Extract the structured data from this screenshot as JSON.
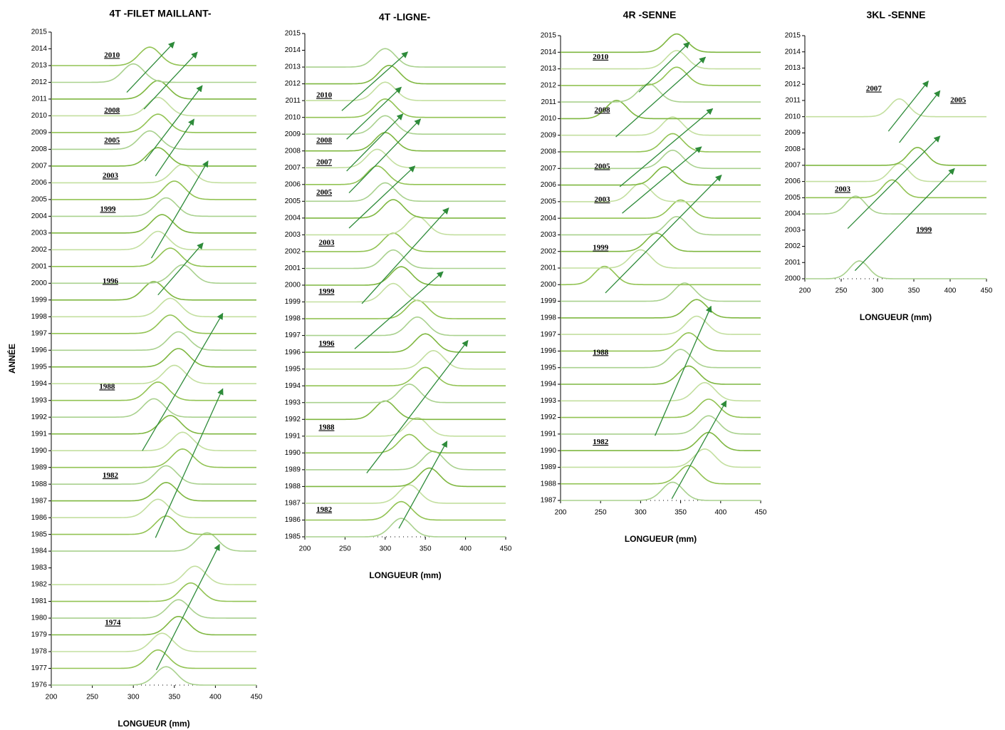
{
  "chart_data": [
    {
      "type": "ridgeline",
      "title": "4T -FILET MAILLANT-",
      "xlabel": "LONGUEUR  (mm)",
      "ylabel": "ANNÉE",
      "xlim": [
        200,
        450
      ],
      "xticks": [
        200,
        250,
        300,
        350,
        400,
        450
      ],
      "ylim": [
        1976,
        2015
      ],
      "yticks": [
        1976,
        1977,
        1978,
        1979,
        1980,
        1981,
        1982,
        1983,
        1984,
        1985,
        1986,
        1987,
        1988,
        1989,
        1990,
        1991,
        1992,
        1993,
        1994,
        1995,
        1996,
        1997,
        1998,
        1999,
        2000,
        2001,
        2002,
        2003,
        2004,
        2005,
        2006,
        2007,
        2008,
        2009,
        2010,
        2011,
        2012,
        2013,
        2014,
        2015
      ],
      "modes": [
        340,
        330,
        335,
        355,
        355,
        370,
        375,
        null,
        390,
        340,
        330,
        340,
        340,
        360,
        360,
        345,
        325,
        330,
        350,
        355,
        355,
        345,
        345,
        325,
        360,
        345,
        330,
        335,
        340,
        350,
        360,
        330,
        320,
        330,
        330,
        330,
        300,
        320,
        null,
        null
      ],
      "colors": [
        "#a9d18e",
        "#92c353",
        "#c3df9f",
        "#7fb740"
      ],
      "arrow_color": "#2e8b3a",
      "annotations": [
        {
          "text": "2010",
          "x": 274,
          "y": 2013.6
        },
        {
          "text": "2008",
          "x": 274,
          "y": 2010.3
        },
        {
          "text": "2005",
          "x": 274,
          "y": 2008.5
        },
        {
          "text": "2003",
          "x": 272,
          "y": 2006.4
        },
        {
          "text": "1999",
          "x": 269,
          "y": 2004.4
        },
        {
          "text": "1996",
          "x": 272,
          "y": 2000.1
        },
        {
          "text": "1988",
          "x": 268,
          "y": 1993.8
        },
        {
          "text": "1982",
          "x": 272,
          "y": 1988.5
        },
        {
          "text": "1974",
          "x": 275,
          "y": 1979.7
        }
      ],
      "arrows": [
        {
          "x1": 292,
          "y1": 2011.4,
          "x2": 350,
          "y2": 2014.4
        },
        {
          "x1": 313,
          "y1": 2010.4,
          "x2": 378,
          "y2": 2013.8
        },
        {
          "x1": 314,
          "y1": 2007.3,
          "x2": 384,
          "y2": 2011.8
        },
        {
          "x1": 327,
          "y1": 2006.4,
          "x2": 374,
          "y2": 2009.8
        },
        {
          "x1": 322,
          "y1": 2001.5,
          "x2": 391,
          "y2": 2007.3
        },
        {
          "x1": 330,
          "y1": 1999.3,
          "x2": 385,
          "y2": 2002.4
        },
        {
          "x1": 311,
          "y1": 1990.0,
          "x2": 409,
          "y2": 1998.2
        },
        {
          "x1": 327,
          "y1": 1984.8,
          "x2": 409,
          "y2": 1993.7
        },
        {
          "x1": 328,
          "y1": 1976.9,
          "x2": 405,
          "y2": 1984.4
        }
      ]
    },
    {
      "type": "ridgeline",
      "title": "4T  -LIGNE-",
      "xlabel": "LONGUEUR (mm)",
      "xlim": [
        200,
        450
      ],
      "xticks": [
        200,
        250,
        300,
        350,
        400,
        450
      ],
      "ylim": [
        1985,
        2015
      ],
      "yticks": [
        1985,
        1986,
        1987,
        1988,
        1989,
        1990,
        1991,
        1992,
        1993,
        1994,
        1995,
        1996,
        1997,
        1998,
        1999,
        2000,
        2001,
        2002,
        2003,
        2004,
        2005,
        2006,
        2007,
        2008,
        2009,
        2010,
        2011,
        2012,
        2013,
        2014,
        2015
      ],
      "modes": [
        320,
        320,
        330,
        355,
        360,
        330,
        340,
        300,
        330,
        350,
        360,
        350,
        340,
        340,
        310,
        320,
        310,
        310,
        340,
        310,
        300,
        290,
        290,
        300,
        300,
        300,
        300,
        305,
        300,
        null,
        null
      ],
      "colors": [
        "#a9d18e",
        "#92c353",
        "#c3df9f",
        "#7fb740"
      ],
      "arrow_color": "#2e8b3a",
      "annotations": [
        {
          "text": "2010",
          "x": 224,
          "y": 2011.3
        },
        {
          "text": "2008",
          "x": 224,
          "y": 2008.6
        },
        {
          "text": "2007",
          "x": 224,
          "y": 2007.3
        },
        {
          "text": "2005",
          "x": 224,
          "y": 2005.5
        },
        {
          "text": "2003",
          "x": 227,
          "y": 2002.5
        },
        {
          "text": "1999",
          "x": 227,
          "y": 1999.6
        },
        {
          "text": "1996",
          "x": 227,
          "y": 1996.5
        },
        {
          "text": "1988",
          "x": 227,
          "y": 1991.5
        },
        {
          "text": "1982",
          "x": 224,
          "y": 1986.6
        }
      ],
      "arrows": [
        {
          "x1": 246,
          "y1": 2010.4,
          "x2": 328,
          "y2": 2013.9
        },
        {
          "x1": 252,
          "y1": 2008.7,
          "x2": 320,
          "y2": 2011.8
        },
        {
          "x1": 252,
          "y1": 2006.8,
          "x2": 322,
          "y2": 2010.2
        },
        {
          "x1": 255,
          "y1": 2005.5,
          "x2": 344,
          "y2": 2009.9
        },
        {
          "x1": 255,
          "y1": 2003.4,
          "x2": 337,
          "y2": 2007.1
        },
        {
          "x1": 271,
          "y1": 1998.9,
          "x2": 379,
          "y2": 2004.6
        },
        {
          "x1": 262,
          "y1": 1996.2,
          "x2": 372,
          "y2": 2000.8
        },
        {
          "x1": 277,
          "y1": 1988.8,
          "x2": 403,
          "y2": 1996.7
        },
        {
          "x1": 317,
          "y1": 1985.5,
          "x2": 377,
          "y2": 1990.7
        }
      ]
    },
    {
      "type": "ridgeline",
      "title": "4R -SENNE",
      "xlabel": "LONGUEUR  (mm)",
      "xlim": [
        200,
        450
      ],
      "xticks": [
        200,
        250,
        300,
        350,
        400,
        450
      ],
      "ylim": [
        1987,
        2015
      ],
      "yticks": [
        1987,
        1988,
        1989,
        1990,
        1991,
        1992,
        1993,
        1994,
        1995,
        1996,
        1997,
        1998,
        1999,
        2000,
        2001,
        2002,
        2003,
        2004,
        2005,
        2006,
        2007,
        2008,
        2009,
        2010,
        2011,
        2012,
        2013,
        2014,
        2015
      ],
      "modes": [
        340,
        360,
        380,
        385,
        385,
        385,
        380,
        360,
        350,
        360,
        370,
        370,
        355,
        255,
        300,
        320,
        345,
        350,
        300,
        330,
        340,
        340,
        340,
        270,
        310,
        345,
        345,
        345,
        null
      ],
      "colors": [
        "#a9d18e",
        "#92c353",
        "#c3df9f",
        "#7fb740"
      ],
      "arrow_color": "#2e8b3a",
      "annotations": [
        {
          "text": "2010",
          "x": 250,
          "y": 2013.7
        },
        {
          "text": "2008",
          "x": 252,
          "y": 2010.5
        },
        {
          "text": "2005",
          "x": 252,
          "y": 2007.1
        },
        {
          "text": "2003",
          "x": 252,
          "y": 2005.1
        },
        {
          "text": "1999",
          "x": 250,
          "y": 2002.2
        },
        {
          "text": "1988",
          "x": 250,
          "y": 1995.9
        },
        {
          "text": "1982",
          "x": 250,
          "y": 1990.5
        }
      ],
      "arrows": [
        {
          "x1": 298,
          "y1": 2011.6,
          "x2": 361,
          "y2": 2014.6
        },
        {
          "x1": 269,
          "y1": 2008.9,
          "x2": 381,
          "y2": 2013.7
        },
        {
          "x1": 274,
          "y1": 2005.9,
          "x2": 390,
          "y2": 2010.6
        },
        {
          "x1": 277,
          "y1": 2004.3,
          "x2": 376,
          "y2": 2008.3
        },
        {
          "x1": 256,
          "y1": 1999.5,
          "x2": 401,
          "y2": 2006.6
        },
        {
          "x1": 318,
          "y1": 1990.9,
          "x2": 388,
          "y2": 1998.7
        },
        {
          "x1": 339,
          "y1": 1987.1,
          "x2": 407,
          "y2": 1993.0
        }
      ]
    },
    {
      "type": "ridgeline",
      "title": "3KL  -SENNE",
      "xlabel": "LONGUEUR (mm)",
      "xlim": [
        200,
        450
      ],
      "xticks": [
        200,
        250,
        300,
        350,
        400,
        450
      ],
      "ylim": [
        2000,
        2015
      ],
      "yticks": [
        2000,
        2001,
        2002,
        2003,
        2004,
        2005,
        2006,
        2007,
        2008,
        2009,
        2010,
        2011,
        2012,
        2013,
        2014,
        2015
      ],
      "modes": [
        275,
        null,
        null,
        null,
        270,
        320,
        330,
        355,
        null,
        null,
        330,
        null,
        null,
        null,
        null,
        null
      ],
      "colors": [
        "#a9d18e",
        "#92c353",
        "#c3df9f",
        "#7fb740"
      ],
      "arrow_color": "#2e8b3a",
      "annotations": [
        {
          "text": "2007",
          "x": 295,
          "y": 2011.7
        },
        {
          "text": "2005",
          "x": 411,
          "y": 2011.0
        },
        {
          "text": "2003",
          "x": 252,
          "y": 2005.5
        },
        {
          "text": "1999",
          "x": 364,
          "y": 2003.0
        }
      ],
      "arrows": [
        {
          "x1": 315,
          "y1": 2009.1,
          "x2": 370,
          "y2": 2012.2
        },
        {
          "x1": 330,
          "y1": 2008.4,
          "x2": 386,
          "y2": 2011.6
        },
        {
          "x1": 259,
          "y1": 2003.1,
          "x2": 386,
          "y2": 2008.8
        },
        {
          "x1": 269,
          "y1": 2000.5,
          "x2": 406,
          "y2": 2006.8
        }
      ]
    }
  ]
}
